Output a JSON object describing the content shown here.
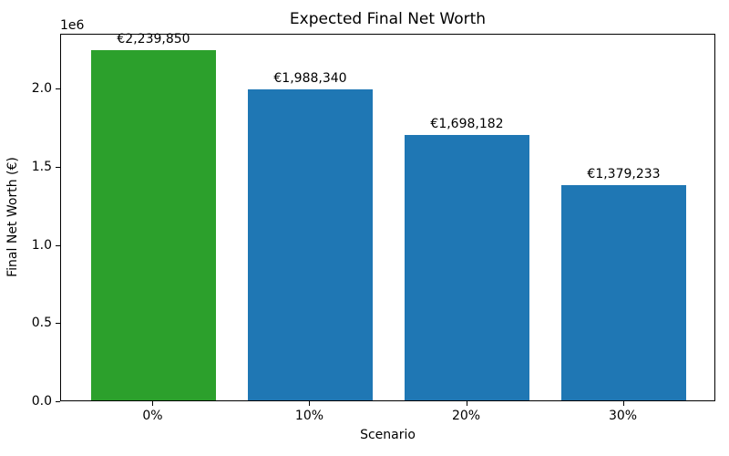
{
  "chart_data": {
    "type": "bar",
    "title": "Expected Final Net Worth",
    "xlabel": "Scenario",
    "ylabel": "Final Net Worth (€)",
    "y_offset_multiplier": "1e6",
    "categories": [
      "0%",
      "10%",
      "20%",
      "30%"
    ],
    "values": [
      2239850,
      1988340,
      1698182,
      1379233
    ],
    "value_labels": [
      "€2,239,850",
      "€1,988,340",
      "€1,698,182",
      "€1,379,233"
    ],
    "bar_colors": [
      "#2ca02c",
      "#1f77b4",
      "#1f77b4",
      "#1f77b4"
    ],
    "colors": {
      "highlight_bar": "#2ca02c",
      "default_bar": "#1f77b4",
      "text": "#000000",
      "spine": "#000000",
      "background": "#ffffff"
    },
    "ylim": [
      0,
      2351842
    ],
    "yticks": [
      {
        "value": 0,
        "label": "0.0"
      },
      {
        "value": 500000,
        "label": "0.5"
      },
      {
        "value": 1000000,
        "label": "1.0"
      },
      {
        "value": 1500000,
        "label": "1.5"
      },
      {
        "value": 2000000,
        "label": "2.0"
      }
    ],
    "grid": false,
    "legend": null
  }
}
